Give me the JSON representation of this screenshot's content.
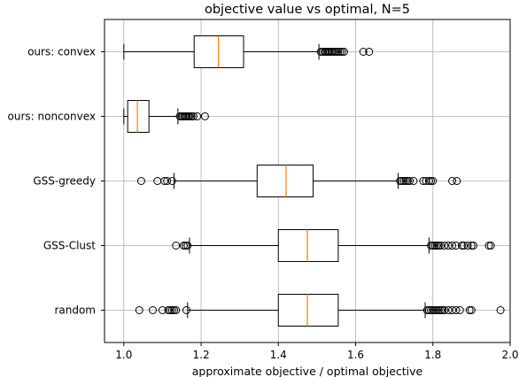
{
  "chart_data": {
    "type": "boxplot",
    "orientation": "horizontal",
    "title": "objective value vs optimal, N=5",
    "xlabel": "approximate objective / optimal objective",
    "ylabel": "",
    "xlim": [
      0.95,
      2.0
    ],
    "xticks": [
      "1.0",
      "1.2",
      "1.4",
      "1.6",
      "1.8",
      "2.0"
    ],
    "xtick_values": [
      1.0,
      1.2,
      1.4,
      1.6,
      1.8,
      2.0
    ],
    "grid": true,
    "colors": {
      "box": "#000000",
      "median": "#ff7f0e",
      "grid": "#b0b0b0"
    },
    "categories": [
      "ours: convex",
      "ours: nonconvex",
      "GSS-greedy",
      "GSS-Clust",
      "random"
    ],
    "series": [
      {
        "category": "ours: convex",
        "whisker_low": 1.0,
        "q1": 1.182,
        "median": 1.245,
        "q3": 1.31,
        "whisker_high": 1.505,
        "outliers": [
          1.51,
          1.515,
          1.52,
          1.523,
          1.527,
          1.53,
          1.533,
          1.537,
          1.54,
          1.545,
          1.55,
          1.555,
          1.56,
          1.565,
          1.57,
          1.62,
          1.635
        ]
      },
      {
        "category": "ours: nonconvex",
        "whisker_low": 1.0,
        "q1": 1.01,
        "median": 1.035,
        "q3": 1.065,
        "whisker_high": 1.14,
        "outliers": [
          1.145,
          1.15,
          1.153,
          1.157,
          1.16,
          1.163,
          1.167,
          1.17,
          1.175,
          1.18,
          1.19,
          1.21
        ]
      },
      {
        "category": "GSS-greedy",
        "whisker_low": 1.13,
        "q1": 1.345,
        "median": 1.42,
        "q3": 1.49,
        "whisker_high": 1.71,
        "outliers": [
          1.045,
          1.087,
          1.105,
          1.112,
          1.125,
          1.715,
          1.72,
          1.725,
          1.73,
          1.735,
          1.74,
          1.75,
          1.775,
          1.782,
          1.79,
          1.795,
          1.8,
          1.85,
          1.862
        ]
      },
      {
        "category": "GSS-Clust",
        "whisker_low": 1.17,
        "q1": 1.4,
        "median": 1.475,
        "q3": 1.555,
        "whisker_high": 1.79,
        "outliers": [
          1.135,
          1.155,
          1.16,
          1.165,
          1.795,
          1.8,
          1.805,
          1.81,
          1.815,
          1.82,
          1.83,
          1.84,
          1.85,
          1.86,
          1.875,
          1.88,
          1.89,
          1.9,
          1.905,
          1.945,
          1.95
        ]
      },
      {
        "category": "random",
        "whisker_low": 1.165,
        "q1": 1.4,
        "median": 1.475,
        "q3": 1.555,
        "whisker_high": 1.78,
        "outliers": [
          1.04,
          1.075,
          1.1,
          1.115,
          1.12,
          1.125,
          1.13,
          1.135,
          1.162,
          1.785,
          1.79,
          1.795,
          1.8,
          1.805,
          1.81,
          1.815,
          1.82,
          1.825,
          1.83,
          1.84,
          1.85,
          1.86,
          1.87,
          1.895,
          1.9,
          1.975
        ]
      }
    ]
  }
}
